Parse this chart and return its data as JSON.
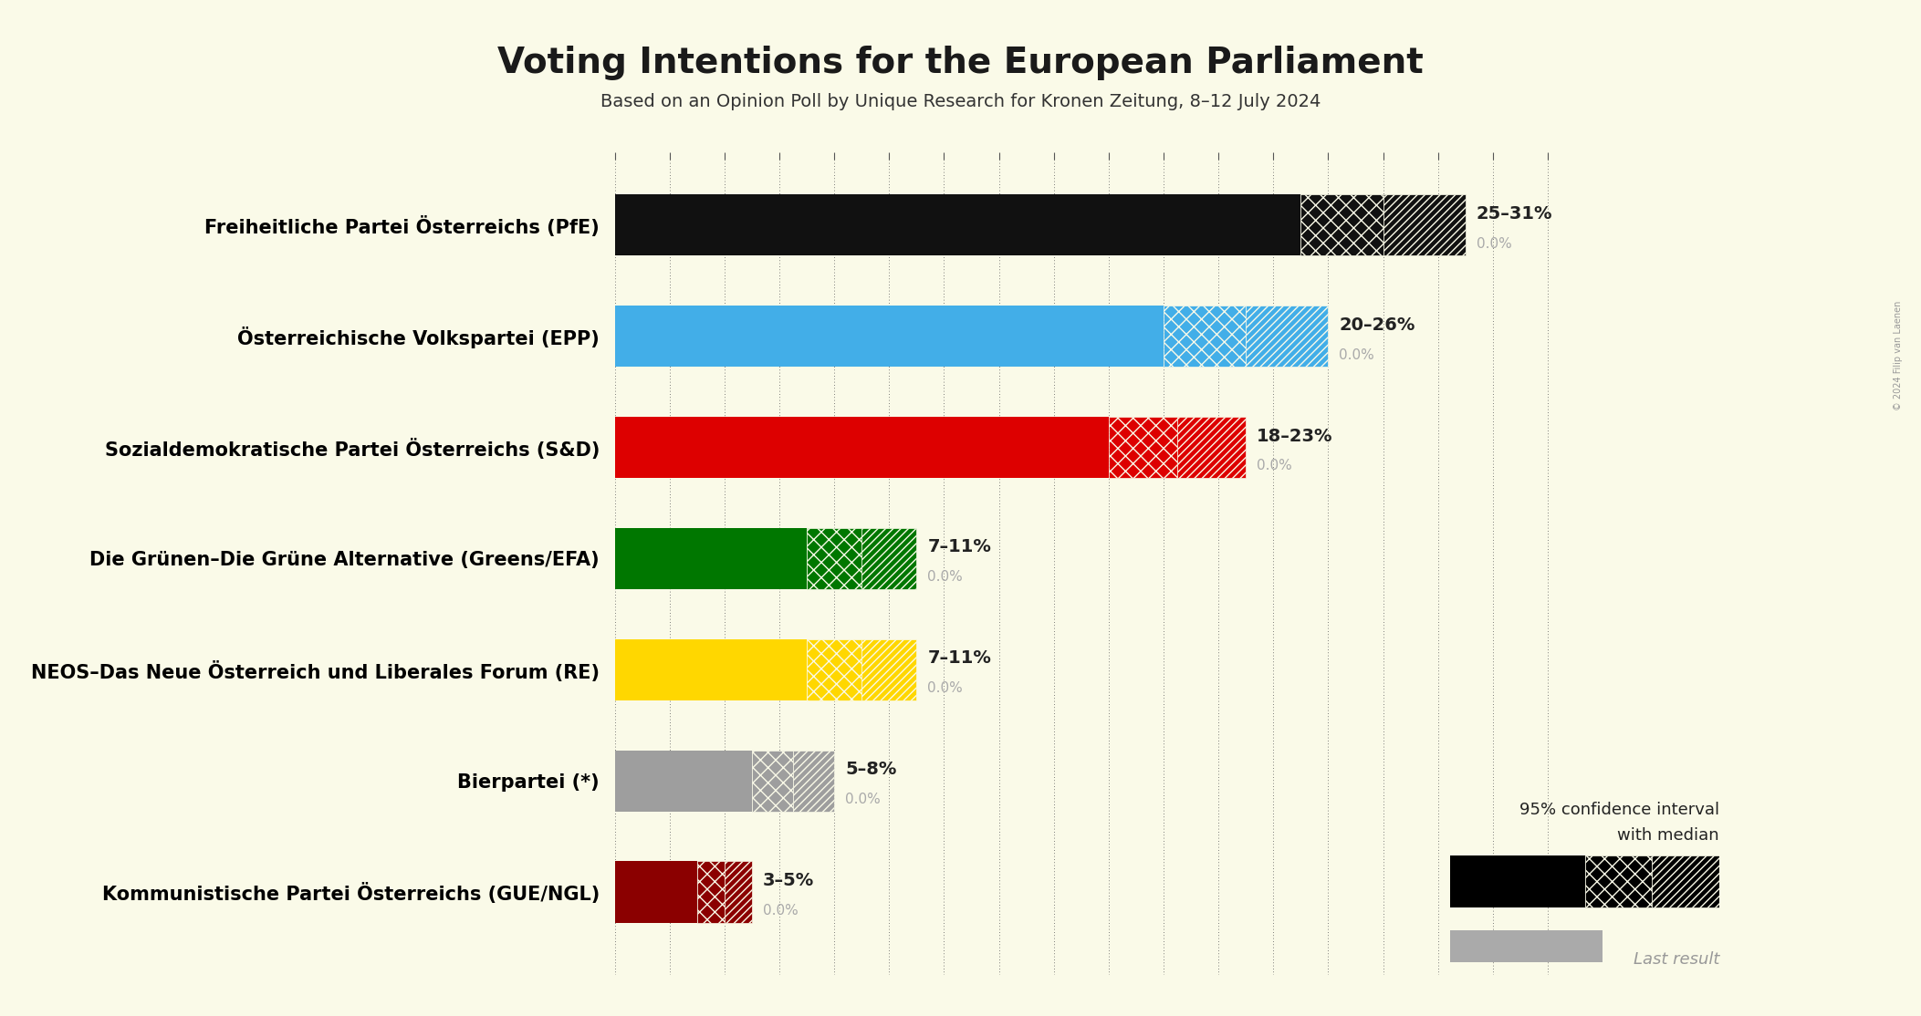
{
  "title": "Voting Intentions for the European Parliament",
  "subtitle": "Based on an Opinion Poll by Unique Research for Kronen Zeitung, 8–12 July 2024",
  "background_color": "#FAFAE8",
  "parties": [
    "Freiheitliche Partei Österreichs (PfE)",
    "Österreichische Volkspartei (EPP)",
    "Sozialdemokratische Partei Österreichs (S&D)",
    "Die Grünen–Die Grüne Alternative (Greens/EFA)",
    "NEOS–Das Neue Österreich und Liberales Forum (RE)",
    "Bierpartei (*)",
    "Kommunistische Partei Österreichs (GUE/NGL)"
  ],
  "median": [
    28,
    23,
    20.5,
    9,
    9,
    6.5,
    4
  ],
  "low": [
    25,
    20,
    18,
    7,
    7,
    5,
    3
  ],
  "high": [
    31,
    26,
    23,
    11,
    11,
    8,
    5
  ],
  "last_result": [
    0.0,
    0.0,
    0.0,
    0.0,
    0.0,
    0.0,
    0.0
  ],
  "colors": [
    "#111111",
    "#42aee8",
    "#dd0000",
    "#007700",
    "#FFD700",
    "#9e9e9e",
    "#8B0000"
  ],
  "range_labels": [
    "25–31%",
    "20–26%",
    "18–23%",
    "7–11%",
    "7–11%",
    "5–8%",
    "3–5%"
  ],
  "xlim": [
    0,
    35
  ],
  "label_fontsize": 15,
  "title_fontsize": 28,
  "subtitle_fontsize": 14
}
